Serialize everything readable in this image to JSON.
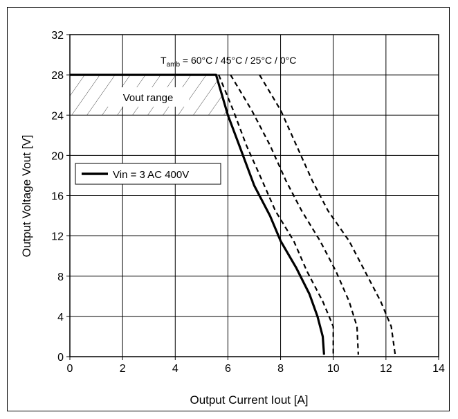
{
  "chart_data": {
    "type": "line",
    "title": "",
    "xlabel": "Output Current Iout [A]",
    "ylabel": "Output Voltage Vout [V]",
    "xlim": [
      0,
      14
    ],
    "ylim": [
      0,
      32
    ],
    "x_ticks": [
      0,
      2,
      4,
      6,
      8,
      10,
      12,
      14
    ],
    "y_ticks": [
      0,
      4,
      8,
      12,
      16,
      20,
      24,
      28,
      32
    ],
    "grid": true,
    "legend": {
      "entries": [
        "Vin = 3 AC 400V"
      ],
      "placement": "left"
    },
    "annotations": {
      "temperature": {
        "prefix": "T",
        "sub": "amb",
        "suffix": " = 60°C / 45°C / 25°C / 0°C"
      },
      "vout_range": "Vout range"
    },
    "vout_range_band": [
      24,
      28
    ],
    "series": [
      {
        "name": "Vin = 3 AC 400V",
        "style": "solid",
        "x": [
          0,
          5.55,
          6.0,
          6.0,
          6.4,
          7.0,
          7.6,
          8.0,
          8.6,
          9.1,
          9.4,
          9.6,
          9.65
        ],
        "y": [
          28,
          28,
          24,
          24,
          21.2,
          17,
          14,
          11.5,
          8.8,
          6.2,
          4,
          2,
          0.2
        ]
      },
      {
        "style": "dashed",
        "x": [
          5.65,
          6.2,
          6.7,
          7.3,
          7.8,
          8.5,
          9.0,
          9.6,
          10.0,
          10.0
        ],
        "y": [
          28,
          24.5,
          21,
          17.5,
          14.5,
          11.5,
          8.5,
          5.5,
          3,
          0.2
        ]
      },
      {
        "style": "dashed",
        "x": [
          6.1,
          6.9,
          7.6,
          8.2,
          8.8,
          9.5,
          10.1,
          10.6,
          10.9,
          10.95
        ],
        "y": [
          28,
          24.5,
          21,
          17.5,
          14.5,
          11.5,
          8.5,
          5.5,
          3,
          0.2
        ]
      },
      {
        "style": "dashed",
        "x": [
          7.2,
          8.0,
          8.6,
          9.2,
          9.8,
          10.6,
          11.2,
          11.8,
          12.2,
          12.35
        ],
        "y": [
          28,
          24.5,
          21,
          17.5,
          14.5,
          11.5,
          8.5,
          5.5,
          3,
          0.2
        ]
      }
    ]
  }
}
